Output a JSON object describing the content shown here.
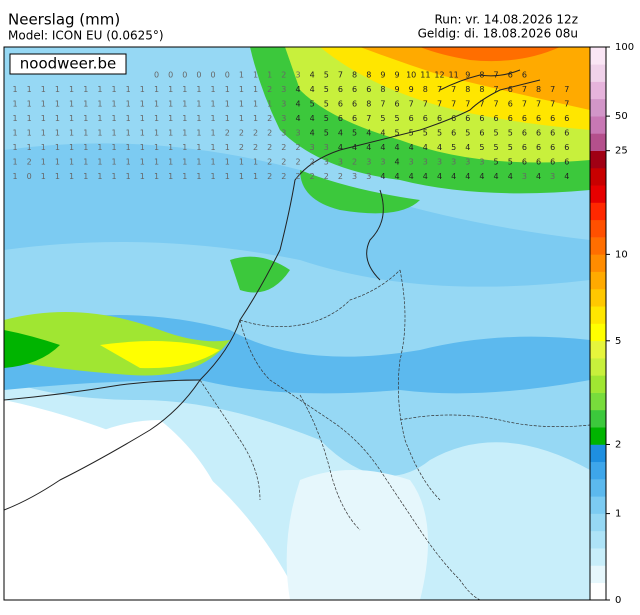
{
  "header": {
    "title": "Neerslag (mm)",
    "model": "Model: ICON EU (0.0625°)",
    "run": "Run: vr. 14.08.2026 12z",
    "valid": "Geldig: di. 18.08.2026 08u"
  },
  "logo": "noodweer.be",
  "colorbar": {
    "levels": [
      0,
      0.2,
      0.4,
      0.6,
      0.8,
      1,
      1.25,
      1.5,
      1.75,
      2,
      2.5,
      3,
      3.5,
      4,
      4.5,
      5,
      6,
      7,
      8,
      9,
      10,
      12.5,
      15,
      17.5,
      20,
      22.5,
      25,
      37.5,
      50,
      62.5,
      75,
      87.5,
      100
    ],
    "colors": [
      "#ffffff",
      "#e6f7fc",
      "#c8eefa",
      "#aee3f7",
      "#96d8f4",
      "#7ccbf2",
      "#5cb9ee",
      "#3ea6ea",
      "#1e8fe0",
      "#00b400",
      "#3cc83c",
      "#78dc3c",
      "#a0e632",
      "#c8f03c",
      "#e6f53c",
      "#ffff00",
      "#ffe600",
      "#ffc800",
      "#ffaa00",
      "#ff8c00",
      "#ff6e00",
      "#ff5000",
      "#ff2800",
      "#e60000",
      "#c80000",
      "#a00014",
      "#b4508c",
      "#c878b4",
      "#d296c8",
      "#e6b4dc",
      "#f0d2ea",
      "#fae6f5"
    ],
    "ticks": [
      0,
      1,
      2,
      5,
      10,
      25,
      50,
      100
    ]
  },
  "grid_values": [
    [
      null,
      null,
      null,
      null,
      null,
      null,
      null,
      null,
      null,
      null,
      0,
      0,
      0,
      0,
      0,
      0,
      1,
      1,
      1,
      2,
      3,
      4,
      5,
      7,
      8,
      8,
      9,
      9,
      10,
      11,
      12,
      11,
      9,
      8,
      7,
      6,
      6,
      null,
      null,
      null
    ],
    [
      1,
      1,
      1,
      1,
      1,
      1,
      1,
      1,
      1,
      1,
      1,
      1,
      1,
      1,
      1,
      1,
      1,
      1,
      2,
      3,
      4,
      4,
      5,
      6,
      6,
      6,
      8,
      9,
      9,
      8,
      7,
      7,
      8,
      8,
      7,
      6,
      7,
      8,
      7,
      7
    ],
    [
      1,
      1,
      1,
      1,
      1,
      1,
      1,
      1,
      1,
      1,
      1,
      1,
      1,
      1,
      1,
      1,
      1,
      1,
      1,
      3,
      4,
      5,
      5,
      6,
      6,
      8,
      7,
      6,
      7,
      7,
      7,
      7,
      7,
      7,
      7,
      6,
      7,
      7,
      7,
      7
    ],
    [
      1,
      1,
      1,
      1,
      1,
      1,
      1,
      1,
      1,
      1,
      1,
      1,
      1,
      1,
      1,
      1,
      1,
      1,
      2,
      3,
      4,
      4,
      5,
      6,
      6,
      7,
      5,
      5,
      6,
      6,
      6,
      6,
      6,
      6,
      6,
      6,
      6,
      6,
      6,
      6
    ],
    [
      1,
      1,
      1,
      1,
      1,
      1,
      1,
      1,
      1,
      1,
      1,
      1,
      1,
      1,
      1,
      2,
      2,
      2,
      2,
      3,
      3,
      4,
      5,
      4,
      5,
      4,
      4,
      5,
      5,
      5,
      5,
      6,
      5,
      6,
      5,
      5,
      6,
      6,
      6,
      6
    ],
    [
      1,
      1,
      1,
      1,
      1,
      1,
      1,
      1,
      1,
      1,
      1,
      1,
      1,
      1,
      1,
      1,
      2,
      2,
      2,
      2,
      2,
      3,
      3,
      4,
      4,
      4,
      4,
      4,
      4,
      4,
      4,
      5,
      4,
      5,
      5,
      5,
      6,
      6,
      6,
      6
    ],
    [
      1,
      2,
      1,
      1,
      1,
      1,
      1,
      1,
      1,
      1,
      1,
      1,
      1,
      1,
      1,
      1,
      1,
      1,
      2,
      2,
      2,
      2,
      3,
      3,
      2,
      3,
      3,
      4,
      3,
      3,
      3,
      3,
      3,
      3,
      5,
      5,
      6,
      6,
      6,
      6
    ],
    [
      1,
      0,
      1,
      1,
      1,
      1,
      1,
      1,
      1,
      1,
      1,
      1,
      1,
      1,
      1,
      1,
      1,
      1,
      2,
      2,
      2,
      2,
      2,
      2,
      3,
      3,
      4,
      4,
      4,
      4,
      4,
      4,
      4,
      4,
      4,
      4,
      3,
      4,
      3,
      4
    ]
  ]
}
